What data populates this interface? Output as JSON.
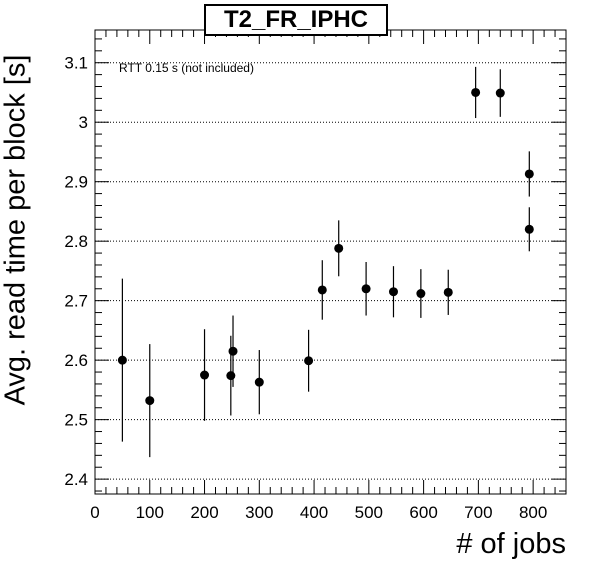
{
  "chart_data": {
    "type": "scatter",
    "title": "T2_FR_IPHC",
    "xlabel": "# of jobs",
    "ylabel": "Avg. read time per block [s]",
    "annotation": "RTT 0.15 s (not included)",
    "xlim": [
      0,
      860
    ],
    "ylim": [
      2.375,
      3.155
    ],
    "xticks": [
      0,
      100,
      200,
      300,
      400,
      500,
      600,
      700,
      800
    ],
    "yticks": [
      2.4,
      2.5,
      2.6,
      2.7,
      2.8,
      2.9,
      3.0,
      3.1
    ],
    "ytick_labels": [
      "2.4",
      "2.5",
      "2.6",
      "2.7",
      "2.8",
      "2.9",
      "3",
      "3.1"
    ],
    "grid": "horizontal dotted",
    "points": [
      {
        "x": 50,
        "y": 2.6,
        "err": 0.137
      },
      {
        "x": 100,
        "y": 2.532,
        "err": 0.095
      },
      {
        "x": 200,
        "y": 2.575,
        "err": 0.077
      },
      {
        "x": 248,
        "y": 2.574,
        "err": 0.067
      },
      {
        "x": 252,
        "y": 2.615,
        "err": 0.06
      },
      {
        "x": 300,
        "y": 2.563,
        "err": 0.054
      },
      {
        "x": 390,
        "y": 2.599,
        "err": 0.052
      },
      {
        "x": 415,
        "y": 2.718,
        "err": 0.05
      },
      {
        "x": 445,
        "y": 2.788,
        "err": 0.047
      },
      {
        "x": 495,
        "y": 2.72,
        "err": 0.045
      },
      {
        "x": 545,
        "y": 2.715,
        "err": 0.043
      },
      {
        "x": 595,
        "y": 2.712,
        "err": 0.041
      },
      {
        "x": 645,
        "y": 2.714,
        "err": 0.038
      },
      {
        "x": 695,
        "y": 3.05,
        "err": 0.043
      },
      {
        "x": 740,
        "y": 3.049,
        "err": 0.04
      },
      {
        "x": 793,
        "y": 2.913,
        "err": 0.038
      },
      {
        "x": 793,
        "y": 2.82,
        "err": 0.037
      }
    ],
    "marker_color": "#000000"
  }
}
